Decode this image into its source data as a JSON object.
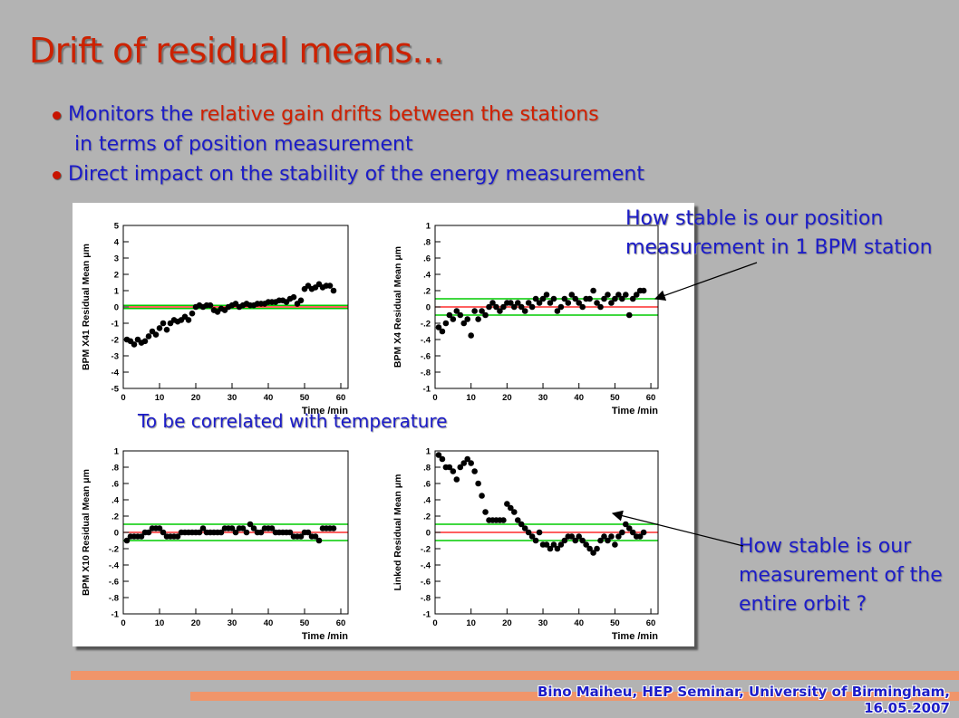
{
  "slide": {
    "title": "Drift of residual means...",
    "bullets": [
      {
        "pre": "Monitors the ",
        "hl": "relative gain drifts between the stations"
      },
      {
        "cont": "in terms of position measurement"
      },
      {
        "pre": "Direct impact on the stability of the energy measurement",
        "hl": ""
      }
    ],
    "correlate_note": "To be correlated with temperature",
    "annotation_top": [
      "How stable is our position",
      "measurement in 1 BPM station"
    ],
    "annotation_bottom": [
      "How stable is our",
      "measurement of the",
      "entire orbit ?"
    ],
    "footer": [
      "Bino Maiheu, HEP Seminar, University of Birmingham,",
      "16.05.2007"
    ],
    "colors": {
      "title": "#cc2200",
      "text": "#1c1cc8",
      "accent_bar": "#f0956a",
      "band": "#00cc00",
      "mean": "#ff0000",
      "marker": "#000000"
    }
  },
  "chart_data": [
    {
      "type": "scatter",
      "ylabel": "BPM X41 Residual Mean μm",
      "xlabel": "Time /min",
      "xlim": [
        0,
        62
      ],
      "ylim": [
        -5,
        5
      ],
      "xticks": [
        0,
        10,
        20,
        30,
        40,
        50,
        60
      ],
      "yticks": [
        -5,
        -4,
        -3,
        -2,
        -1,
        0,
        1,
        2,
        3,
        4,
        5
      ],
      "mean": 0.0,
      "band": [
        -0.1,
        0.1
      ],
      "x": [
        1,
        2,
        3,
        4,
        5,
        6,
        7,
        8,
        9,
        10,
        11,
        12,
        13,
        14,
        15,
        16,
        17,
        18,
        19,
        20,
        21,
        22,
        23,
        24,
        25,
        26,
        27,
        28,
        29,
        30,
        31,
        32,
        33,
        34,
        35,
        36,
        37,
        38,
        39,
        40,
        41,
        42,
        43,
        44,
        45,
        46,
        47,
        48,
        49,
        50,
        51,
        52,
        53,
        54,
        55,
        56,
        57,
        58
      ],
      "y": [
        -2.0,
        -2.1,
        -2.3,
        -2.0,
        -2.2,
        -2.1,
        -1.8,
        -1.5,
        -1.7,
        -1.3,
        -1.0,
        -1.4,
        -1.0,
        -0.8,
        -0.9,
        -0.8,
        -0.6,
        -0.8,
        -0.4,
        0.0,
        0.1,
        0.0,
        0.1,
        0.1,
        -0.2,
        -0.3,
        -0.1,
        -0.2,
        0.0,
        0.1,
        0.2,
        0.0,
        0.1,
        0.2,
        0.1,
        0.1,
        0.2,
        0.2,
        0.2,
        0.3,
        0.3,
        0.3,
        0.4,
        0.4,
        0.3,
        0.5,
        0.6,
        0.2,
        0.4,
        1.1,
        1.3,
        1.1,
        1.2,
        1.4,
        1.2,
        1.3,
        1.3,
        1.0
      ]
    },
    {
      "type": "scatter",
      "ylabel": "BPM X4 Residual Mean μm",
      "xlabel": "Time /min",
      "xlim": [
        0,
        62
      ],
      "ylim": [
        -1,
        1
      ],
      "xticks": [
        0,
        10,
        20,
        30,
        40,
        50,
        60
      ],
      "yticks": [
        -1,
        -0.8,
        -0.6,
        -0.4,
        -0.2,
        0,
        0.2,
        0.4,
        0.6,
        0.8,
        1
      ],
      "mean": 0.0,
      "band": [
        -0.1,
        0.1
      ],
      "x": [
        1,
        2,
        3,
        4,
        5,
        6,
        7,
        8,
        9,
        10,
        11,
        12,
        13,
        14,
        15,
        16,
        17,
        18,
        19,
        20,
        21,
        22,
        23,
        24,
        25,
        26,
        27,
        28,
        29,
        30,
        31,
        32,
        33,
        34,
        35,
        36,
        37,
        38,
        39,
        40,
        41,
        42,
        43,
        44,
        45,
        46,
        47,
        48,
        49,
        50,
        51,
        52,
        53,
        54,
        55,
        56,
        57,
        58
      ],
      "y": [
        -0.25,
        -0.3,
        -0.2,
        -0.1,
        -0.15,
        -0.05,
        -0.1,
        -0.2,
        -0.15,
        -0.35,
        -0.05,
        -0.15,
        -0.05,
        -0.1,
        0.0,
        0.05,
        0.0,
        -0.05,
        0.0,
        0.05,
        0.05,
        0.0,
        0.05,
        0.0,
        -0.05,
        0.05,
        0.0,
        0.1,
        0.05,
        0.1,
        0.15,
        0.05,
        0.1,
        -0.05,
        0.0,
        0.1,
        0.05,
        0.15,
        0.1,
        0.05,
        0.0,
        0.1,
        0.1,
        0.2,
        0.05,
        0.0,
        0.1,
        0.15,
        0.05,
        0.1,
        0.15,
        0.1,
        0.15,
        -0.1,
        0.1,
        0.15,
        0.2,
        0.2
      ]
    },
    {
      "type": "scatter",
      "ylabel": "BPM X10 Residual Mean μm",
      "xlabel": "Time /min",
      "xlim": [
        0,
        62
      ],
      "ylim": [
        -1,
        1
      ],
      "xticks": [
        0,
        10,
        20,
        30,
        40,
        50,
        60
      ],
      "yticks": [
        -1,
        -0.8,
        -0.6,
        -0.4,
        -0.2,
        0,
        0.2,
        0.4,
        0.6,
        0.8,
        1
      ],
      "mean": 0.0,
      "band": [
        -0.1,
        0.1
      ],
      "x": [
        1,
        2,
        3,
        4,
        5,
        6,
        7,
        8,
        9,
        10,
        11,
        12,
        13,
        14,
        15,
        16,
        17,
        18,
        19,
        20,
        21,
        22,
        23,
        24,
        25,
        26,
        27,
        28,
        29,
        30,
        31,
        32,
        33,
        34,
        35,
        36,
        37,
        38,
        39,
        40,
        41,
        42,
        43,
        44,
        45,
        46,
        47,
        48,
        49,
        50,
        51,
        52,
        53,
        54,
        55,
        56,
        57,
        58
      ],
      "y": [
        -0.1,
        -0.05,
        -0.05,
        -0.05,
        -0.05,
        0.0,
        0.0,
        0.05,
        0.05,
        0.05,
        0.0,
        -0.05,
        -0.05,
        -0.05,
        -0.05,
        0.0,
        0.0,
        0.0,
        0.0,
        0.0,
        0.0,
        0.05,
        0.0,
        0.0,
        0.0,
        0.0,
        0.0,
        0.05,
        0.05,
        0.05,
        0.0,
        0.05,
        0.05,
        0.0,
        0.1,
        0.05,
        0.0,
        0.0,
        0.05,
        0.05,
        0.05,
        0.0,
        0.0,
        0.0,
        0.0,
        0.0,
        -0.05,
        -0.05,
        -0.05,
        0.0,
        0.0,
        -0.05,
        -0.05,
        -0.1,
        0.05,
        0.05,
        0.05,
        0.05
      ]
    },
    {
      "type": "scatter",
      "ylabel": "Linked Residual Mean μm",
      "xlabel": "Time /min",
      "xlim": [
        0,
        62
      ],
      "ylim": [
        -1,
        1
      ],
      "xticks": [
        0,
        10,
        20,
        30,
        40,
        50,
        60
      ],
      "yticks": [
        -1,
        -0.8,
        -0.6,
        -0.4,
        -0.2,
        0,
        0.2,
        0.4,
        0.6,
        0.8,
        1
      ],
      "mean": 0.0,
      "band": [
        -0.1,
        0.1
      ],
      "x": [
        1,
        2,
        3,
        4,
        5,
        6,
        7,
        8,
        9,
        10,
        11,
        12,
        13,
        14,
        15,
        16,
        17,
        18,
        19,
        20,
        21,
        22,
        23,
        24,
        25,
        26,
        27,
        28,
        29,
        30,
        31,
        32,
        33,
        34,
        35,
        36,
        37,
        38,
        39,
        40,
        41,
        42,
        43,
        44,
        45,
        46,
        47,
        48,
        49,
        50,
        51,
        52,
        53,
        54,
        55,
        56,
        57,
        58
      ],
      "y": [
        0.95,
        0.9,
        0.8,
        0.8,
        0.75,
        0.65,
        0.8,
        0.85,
        0.9,
        0.85,
        0.75,
        0.6,
        0.45,
        0.25,
        0.15,
        0.15,
        0.15,
        0.15,
        0.15,
        0.35,
        0.3,
        0.25,
        0.15,
        0.1,
        0.05,
        0.0,
        -0.05,
        -0.1,
        0.0,
        -0.15,
        -0.15,
        -0.2,
        -0.15,
        -0.2,
        -0.15,
        -0.1,
        -0.05,
        -0.05,
        -0.1,
        -0.05,
        -0.1,
        -0.15,
        -0.2,
        -0.25,
        -0.2,
        -0.1,
        -0.05,
        -0.1,
        -0.05,
        -0.15,
        -0.05,
        0.0,
        0.1,
        0.05,
        0.0,
        -0.05,
        -0.05,
        0.0
      ]
    }
  ]
}
